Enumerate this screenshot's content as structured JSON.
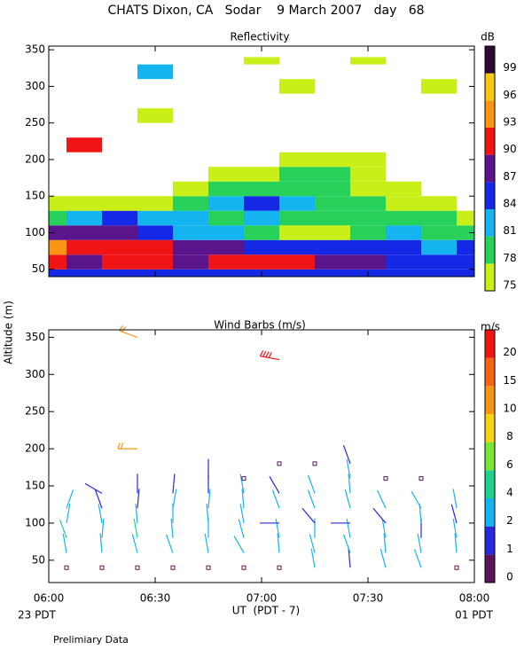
{
  "page": {
    "title": "CHATS Dixon, CA   Sodar    9 March 2007   day   68",
    "ylabel": "Altitude (m)",
    "xlabel": "UT  (PDT - 7)",
    "left_note": "23 PDT",
    "right_note": "01 PDT",
    "footnote": "Prelimiary Data"
  },
  "chart_data": [
    {
      "type": "heatmap",
      "title": "Reflectivity",
      "colorbar_title": "dB",
      "levels": [
        75,
        78,
        81,
        84,
        87,
        90,
        93,
        96,
        99
      ],
      "colors": [
        "#c8f018",
        "#28d25a",
        "#14b4f0",
        "#1428e6",
        "#5a148c",
        "#f01414",
        "#fa9614",
        "#f5c814",
        "#2d0a32"
      ],
      "times": [
        "06:00",
        "06:10",
        "06:20",
        "06:30",
        "06:40",
        "06:50",
        "07:00",
        "07:10",
        "07:20",
        "07:30",
        "07:40",
        "07:50",
        "08:00"
      ],
      "heights": [
        40,
        60,
        80,
        100,
        120,
        140,
        160,
        180,
        200,
        220,
        240,
        260,
        280,
        300,
        320,
        340
      ],
      "values": [
        [
          85,
          85,
          86,
          86,
          86,
          86,
          86,
          86,
          86,
          85,
          85,
          85,
          85
        ],
        [
          90,
          89,
          91,
          91,
          88,
          90,
          91,
          90,
          88,
          87,
          85,
          85,
          85
        ],
        [
          93,
          92,
          91,
          90,
          88,
          87,
          86,
          86,
          86,
          86,
          84,
          83,
          84
        ],
        [
          87,
          87,
          88,
          86,
          83,
          81,
          78,
          76,
          76,
          78,
          82,
          80,
          79
        ],
        [
          80,
          82,
          84,
          83,
          82,
          80,
          81,
          80,
          79,
          80,
          79,
          78,
          77
        ],
        [
          75,
          77,
          77,
          76,
          78,
          81,
          85,
          82,
          79,
          78,
          76,
          75,
          null
        ],
        [
          null,
          null,
          null,
          null,
          75,
          78,
          80,
          79,
          78,
          77,
          75,
          null,
          null
        ],
        [
          null,
          null,
          null,
          null,
          null,
          75,
          76,
          78,
          78,
          76,
          null,
          null,
          null
        ],
        [
          null,
          null,
          null,
          null,
          null,
          null,
          null,
          75,
          76,
          75,
          null,
          null,
          null
        ],
        [
          null,
          90,
          null,
          null,
          null,
          null,
          null,
          null,
          null,
          null,
          null,
          null,
          null
        ],
        [
          null,
          null,
          null,
          null,
          null,
          null,
          null,
          null,
          null,
          null,
          null,
          null,
          null
        ],
        [
          null,
          null,
          null,
          75,
          null,
          null,
          null,
          null,
          null,
          null,
          null,
          null,
          null
        ],
        [
          null,
          null,
          null,
          null,
          null,
          null,
          null,
          null,
          null,
          null,
          null,
          null,
          null
        ],
        [
          null,
          null,
          null,
          null,
          null,
          null,
          null,
          75,
          null,
          null,
          null,
          75,
          null
        ],
        [
          null,
          null,
          null,
          81,
          null,
          null,
          null,
          null,
          null,
          null,
          null,
          null,
          null
        ],
        [
          null,
          null,
          null,
          null,
          null,
          null,
          75,
          null,
          null,
          75,
          null,
          null,
          null
        ]
      ],
      "xlim": [
        "06:00",
        "08:00"
      ],
      "ylim": [
        40,
        355
      ],
      "yticks": [
        50,
        100,
        150,
        200,
        250,
        300,
        350
      ]
    },
    {
      "type": "barbs",
      "title": "Wind Barbs (m/s)",
      "colorbar_title": "m/s",
      "levels": [
        0,
        1,
        2,
        4,
        6,
        8,
        10,
        15,
        20
      ],
      "colors": [
        "#5a145a",
        "#2828dc",
        "#14b4f0",
        "#1ed28c",
        "#78e632",
        "#f5d214",
        "#f59614",
        "#f56414",
        "#f01414"
      ],
      "time": [
        "06:05",
        "06:05",
        "06:05",
        "06:05",
        "06:05",
        "06:15",
        "06:15",
        "06:15",
        "06:15",
        "06:15",
        "06:15",
        "06:25",
        "06:25",
        "06:25",
        "06:25",
        "06:25",
        "06:25",
        "06:25",
        "06:25",
        "06:35",
        "06:35",
        "06:35",
        "06:35",
        "06:35",
        "06:35",
        "06:45",
        "06:45",
        "06:45",
        "06:45",
        "06:45",
        "06:45",
        "06:45",
        "06:55",
        "06:55",
        "06:55",
        "06:55",
        "06:55",
        "06:55",
        "06:55",
        "07:05",
        "07:05",
        "07:05",
        "07:05",
        "07:05",
        "07:05",
        "07:05",
        "07:05",
        "07:15",
        "07:15",
        "07:15",
        "07:15",
        "07:15",
        "07:15",
        "07:15",
        "07:25",
        "07:25",
        "07:25",
        "07:25",
        "07:25",
        "07:25",
        "07:25",
        "07:25",
        "07:35",
        "07:35",
        "07:35",
        "07:35",
        "07:35",
        "07:35",
        "07:45",
        "07:45",
        "07:45",
        "07:45",
        "07:45",
        "07:45",
        "07:55",
        "07:55",
        "07:55",
        "07:55",
        "07:55"
      ],
      "height": [
        40,
        60,
        80,
        100,
        120,
        40,
        60,
        80,
        100,
        120,
        140,
        40,
        60,
        80,
        100,
        120,
        140,
        200,
        350,
        40,
        60,
        80,
        100,
        120,
        140,
        40,
        60,
        80,
        100,
        120,
        140,
        160,
        40,
        60,
        80,
        100,
        120,
        140,
        160,
        40,
        60,
        80,
        100,
        120,
        140,
        180,
        320,
        40,
        60,
        80,
        100,
        120,
        140,
        180,
        40,
        60,
        80,
        100,
        120,
        140,
        160,
        180,
        40,
        60,
        80,
        100,
        120,
        160,
        40,
        60,
        80,
        100,
        120,
        160,
        40,
        60,
        80,
        100,
        120
      ],
      "speed": [
        0,
        3,
        4,
        3,
        2,
        0,
        2,
        2,
        2,
        1,
        1,
        0,
        3,
        4,
        2,
        1,
        1,
        10,
        12,
        0,
        3,
        2,
        2,
        2,
        1,
        0,
        2,
        2,
        2,
        2,
        1,
        1,
        0,
        2,
        2,
        2,
        2,
        2,
        0,
        0,
        2,
        2,
        1,
        2,
        1,
        0,
        20,
        2,
        2,
        2,
        1,
        2,
        2,
        0,
        1,
        2,
        2,
        1,
        2,
        2,
        2,
        1,
        2,
        2,
        2,
        1,
        2,
        0,
        2,
        2,
        1,
        2,
        2,
        0,
        0,
        2,
        2,
        1,
        2
      ],
      "direction": [
        0,
        170,
        160,
        190,
        200,
        0,
        175,
        185,
        170,
        160,
        120,
        0,
        165,
        170,
        175,
        185,
        180,
        90,
        110,
        0,
        160,
        175,
        180,
        190,
        185,
        0,
        170,
        180,
        175,
        185,
        180,
        180,
        0,
        150,
        165,
        170,
        175,
        170,
        0,
        0,
        175,
        170,
        90,
        160,
        150,
        0,
        100,
        170,
        165,
        180,
        140,
        160,
        160,
        0,
        175,
        160,
        170,
        90,
        165,
        175,
        170,
        160,
        165,
        175,
        170,
        140,
        155,
        0,
        160,
        170,
        180,
        175,
        150,
        0,
        0,
        175,
        170,
        165,
        170
      ],
      "xlim": [
        "06:00",
        "08:00"
      ],
      "xticks": [
        "06:00",
        "06:30",
        "07:00",
        "07:30",
        "08:00"
      ],
      "ylim": [
        20,
        360
      ],
      "yticks": [
        50,
        100,
        150,
        200,
        250,
        300,
        350
      ]
    }
  ]
}
